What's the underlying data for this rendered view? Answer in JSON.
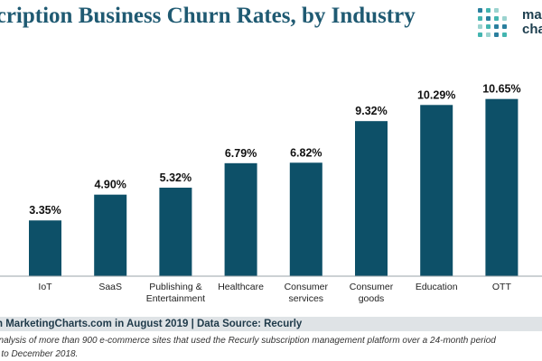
{
  "header": {
    "title": "scription Business Churn Rates, by Industry"
  },
  "logo": {
    "word_top": "ma",
    "word_bottom": "cha",
    "dot_colors": [
      "#43b5b0",
      "#2a7f9e",
      "#9bd3cf"
    ]
  },
  "colors": {
    "bar": "#0d5068",
    "title": "#1f5a72",
    "baseline": "#9aa3a8"
  },
  "chart_data": {
    "type": "bar",
    "title": "scription Business Churn Rates, by Industry",
    "categories": [
      "IoT",
      "SaaS",
      "Publishing & Entertainment",
      "Healthcare",
      "Consumer services",
      "Consumer goods",
      "Education",
      "OTT"
    ],
    "category_lines": [
      [
        "IoT"
      ],
      [
        "SaaS"
      ],
      [
        "Publishing &",
        "Entertainment"
      ],
      [
        "Healthcare"
      ],
      [
        "Consumer",
        "services"
      ],
      [
        "Consumer",
        "goods"
      ],
      [
        "Education"
      ],
      [
        "OTT"
      ]
    ],
    "values": [
      3.35,
      4.9,
      5.32,
      6.79,
      6.82,
      9.32,
      10.29,
      10.65
    ],
    "value_labels": [
      "3.35%",
      "4.90%",
      "5.32%",
      "6.79%",
      "6.82%",
      "9.32%",
      "10.29%",
      "10.65%"
    ],
    "ylim": [
      0,
      11.5
    ],
    "grid": false,
    "xlabel": "",
    "ylabel": ""
  },
  "footer": {
    "source": "n MarketingCharts.com in August 2019 | Data Source: Recurly",
    "note_line1": "analysis of more than 900 e-commerce sites that used the Recurly subscription management platform over a 24-month period",
    "note_line2": "7 to December 2018."
  }
}
